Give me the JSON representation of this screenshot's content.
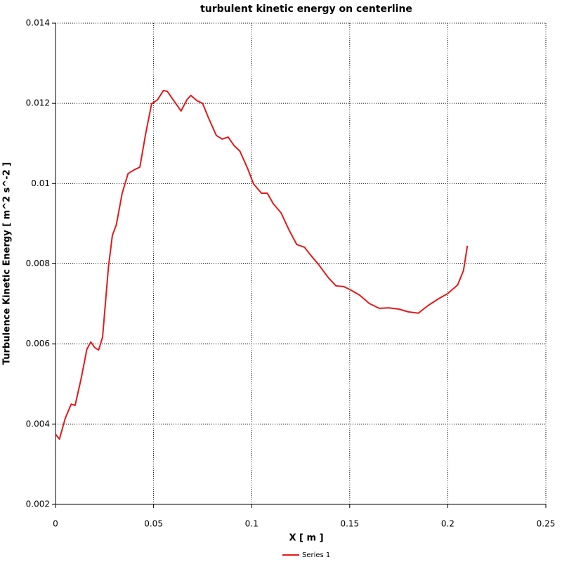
{
  "chart_data": {
    "type": "line",
    "title": "turbulent kinetic energy on centerline",
    "xlabel": "X [ m ]",
    "ylabel": "Turbulence Kinetic Energy [ m^2 s^-2 ]",
    "xlim": [
      0,
      0.25
    ],
    "xticks": [
      0,
      0.05,
      0.1,
      0.15,
      0.2,
      0.25
    ],
    "ylim": [
      0.002,
      0.014
    ],
    "yticks": [
      0.002,
      0.004,
      0.006,
      0.008,
      0.01,
      0.012,
      0.014
    ],
    "grid": true,
    "legend": "bottom",
    "x": [
      0,
      0.002,
      0.005,
      0.008,
      0.01,
      0.013,
      0.016,
      0.018,
      0.02,
      0.022,
      0.024,
      0.027,
      0.029,
      0.031,
      0.034,
      0.037,
      0.04,
      0.043,
      0.046,
      0.049,
      0.052,
      0.055,
      0.057,
      0.06,
      0.064,
      0.067,
      0.069,
      0.072,
      0.075,
      0.078,
      0.082,
      0.085,
      0.088,
      0.091,
      0.094,
      0.098,
      0.101,
      0.105,
      0.108,
      0.111,
      0.115,
      0.119,
      0.123,
      0.127,
      0.13,
      0.134,
      0.139,
      0.143,
      0.147,
      0.15,
      0.155,
      0.16,
      0.165,
      0.17,
      0.175,
      0.18,
      0.185,
      0.19,
      0.195,
      0.2,
      0.205,
      0.208,
      0.21
    ],
    "series": [
      {
        "name": "Series 1",
        "color": "#e31a1c",
        "values": [
          0.00375,
          0.00363,
          0.00415,
          0.0045,
          0.00447,
          0.00512,
          0.00587,
          0.00605,
          0.00591,
          0.00585,
          0.00617,
          0.00792,
          0.00871,
          0.00897,
          0.00976,
          0.01025,
          0.01034,
          0.01041,
          0.01125,
          0.01199,
          0.01209,
          0.01232,
          0.0123,
          0.01209,
          0.01181,
          0.01209,
          0.0122,
          0.01207,
          0.012,
          0.01164,
          0.0112,
          0.01111,
          0.01116,
          0.01095,
          0.01081,
          0.01037,
          0.00999,
          0.00976,
          0.00976,
          0.0095,
          0.00927,
          0.00885,
          0.00848,
          0.00841,
          0.00822,
          0.00799,
          0.00766,
          0.00745,
          0.00743,
          0.00736,
          0.00722,
          0.00701,
          0.00689,
          0.0069,
          0.00687,
          0.0068,
          0.00677,
          0.00696,
          0.00712,
          0.00726,
          0.00747,
          0.00783,
          0.00845
        ]
      }
    ]
  }
}
